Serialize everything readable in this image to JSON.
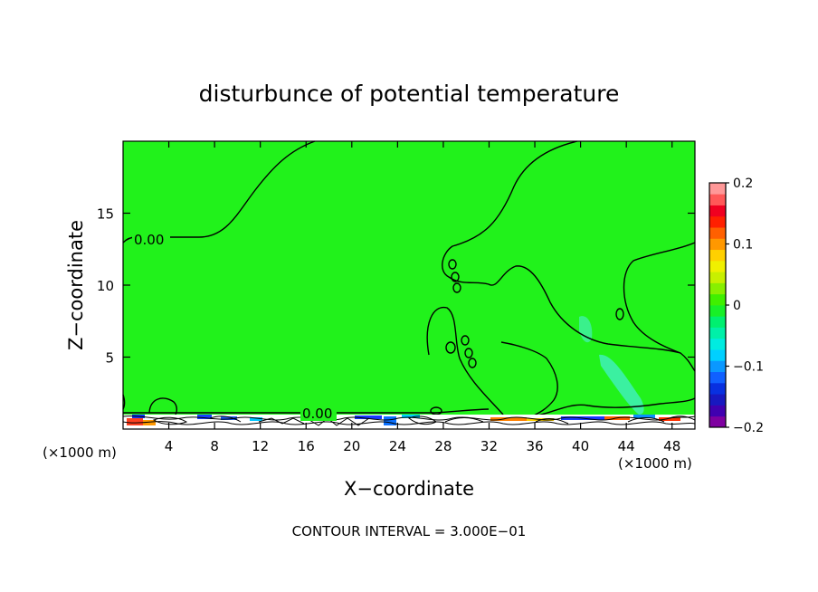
{
  "chart_data": {
    "type": "heatmap",
    "title": "disturbunce of potential temperature",
    "xlabel": "X−coordinate",
    "ylabel": "Z−coordinate",
    "x_unit_left": "(×1000 m)",
    "x_unit_right": "(×1000 m)",
    "xlim": [
      0,
      50
    ],
    "ylim": [
      0,
      20
    ],
    "x_ticks": [
      4,
      8,
      12,
      16,
      20,
      24,
      28,
      32,
      36,
      40,
      44,
      48
    ],
    "y_ticks": [
      5,
      10,
      15
    ],
    "contour_labels": [
      "0.00",
      "0.00"
    ],
    "footer": "CONTOUR INTERVAL = 3.000E−01",
    "colorbar": {
      "range": [
        -0.2,
        0.2
      ],
      "tick_values": [
        0.2,
        0.1,
        0,
        -0.1,
        -0.2
      ],
      "tick_labels": [
        "0.2",
        "0.1",
        "0",
        "−0.1",
        "−0.2"
      ],
      "colors": [
        "#7e00a0",
        "#4000b0",
        "#1818c0",
        "#0830e0",
        "#1060ff",
        "#0a98ff",
        "#00d0ff",
        "#00ece0",
        "#00f0a8",
        "#00f070",
        "#18f028",
        "#40f000",
        "#88f000",
        "#c8f000",
        "#f0f000",
        "#ffd000",
        "#ff9800",
        "#ff6000",
        "#ff2000",
        "#f00020",
        "#ff5858",
        "#ff9898"
      ]
    },
    "background_color": "#21f21b"
  }
}
